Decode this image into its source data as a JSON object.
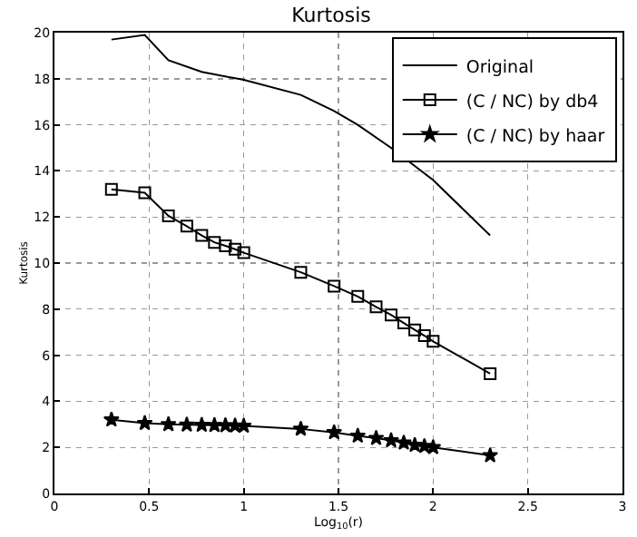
{
  "chart_data": {
    "type": "line",
    "title": "Kurtosis",
    "xlabel": "Log$_{10}$(r)",
    "ylabel": "Kurtosis",
    "xlim": [
      0,
      3
    ],
    "xticks": [
      0,
      0.5,
      1,
      1.5,
      2,
      2.5,
      3
    ],
    "ylim": [
      0,
      20
    ],
    "yticks": [
      0,
      2,
      4,
      6,
      8,
      10,
      12,
      14,
      16,
      18,
      20
    ],
    "grid": true,
    "legend": "top right",
    "series": [
      {
        "name": "Original",
        "color": "#000000",
        "marker": "none",
        "x": [
          0.301,
          0.477,
          0.602,
          0.778,
          1,
          1.301,
          1.477,
          1.602,
          1.778,
          2,
          2.301
        ],
        "values": [
          19.7,
          19.9,
          18.8,
          18.3,
          17.95,
          17.3,
          16.6,
          16,
          15,
          13.6,
          11.2
        ]
      },
      {
        "name": "(C / NC) by db4",
        "color": "#000000",
        "marker": "square",
        "x": [
          0.301,
          0.477,
          0.602,
          0.699,
          0.778,
          0.845,
          0.903,
          0.954,
          1,
          1.301,
          1.477,
          1.602,
          1.699,
          1.778,
          1.845,
          1.903,
          1.954,
          2,
          2.301
        ],
        "values": [
          13.2,
          13.05,
          12.05,
          11.6,
          11.2,
          10.9,
          10.75,
          10.6,
          10.45,
          9.6,
          9,
          8.55,
          8.1,
          7.75,
          7.4,
          7.1,
          6.85,
          6.6,
          5.2
        ]
      },
      {
        "name": "(C / NC) by haar",
        "color": "#000000",
        "marker": "star",
        "x": [
          0.301,
          0.477,
          0.602,
          0.699,
          0.778,
          0.845,
          0.903,
          0.954,
          1,
          1.301,
          1.477,
          1.602,
          1.699,
          1.778,
          1.845,
          1.903,
          1.954,
          2,
          2.301
        ],
        "values": [
          3.2,
          3.05,
          3,
          2.98,
          2.97,
          2.96,
          2.95,
          2.94,
          2.93,
          2.8,
          2.65,
          2.5,
          2.4,
          2.3,
          2.2,
          2.1,
          2.05,
          2,
          1.65
        ]
      }
    ]
  }
}
